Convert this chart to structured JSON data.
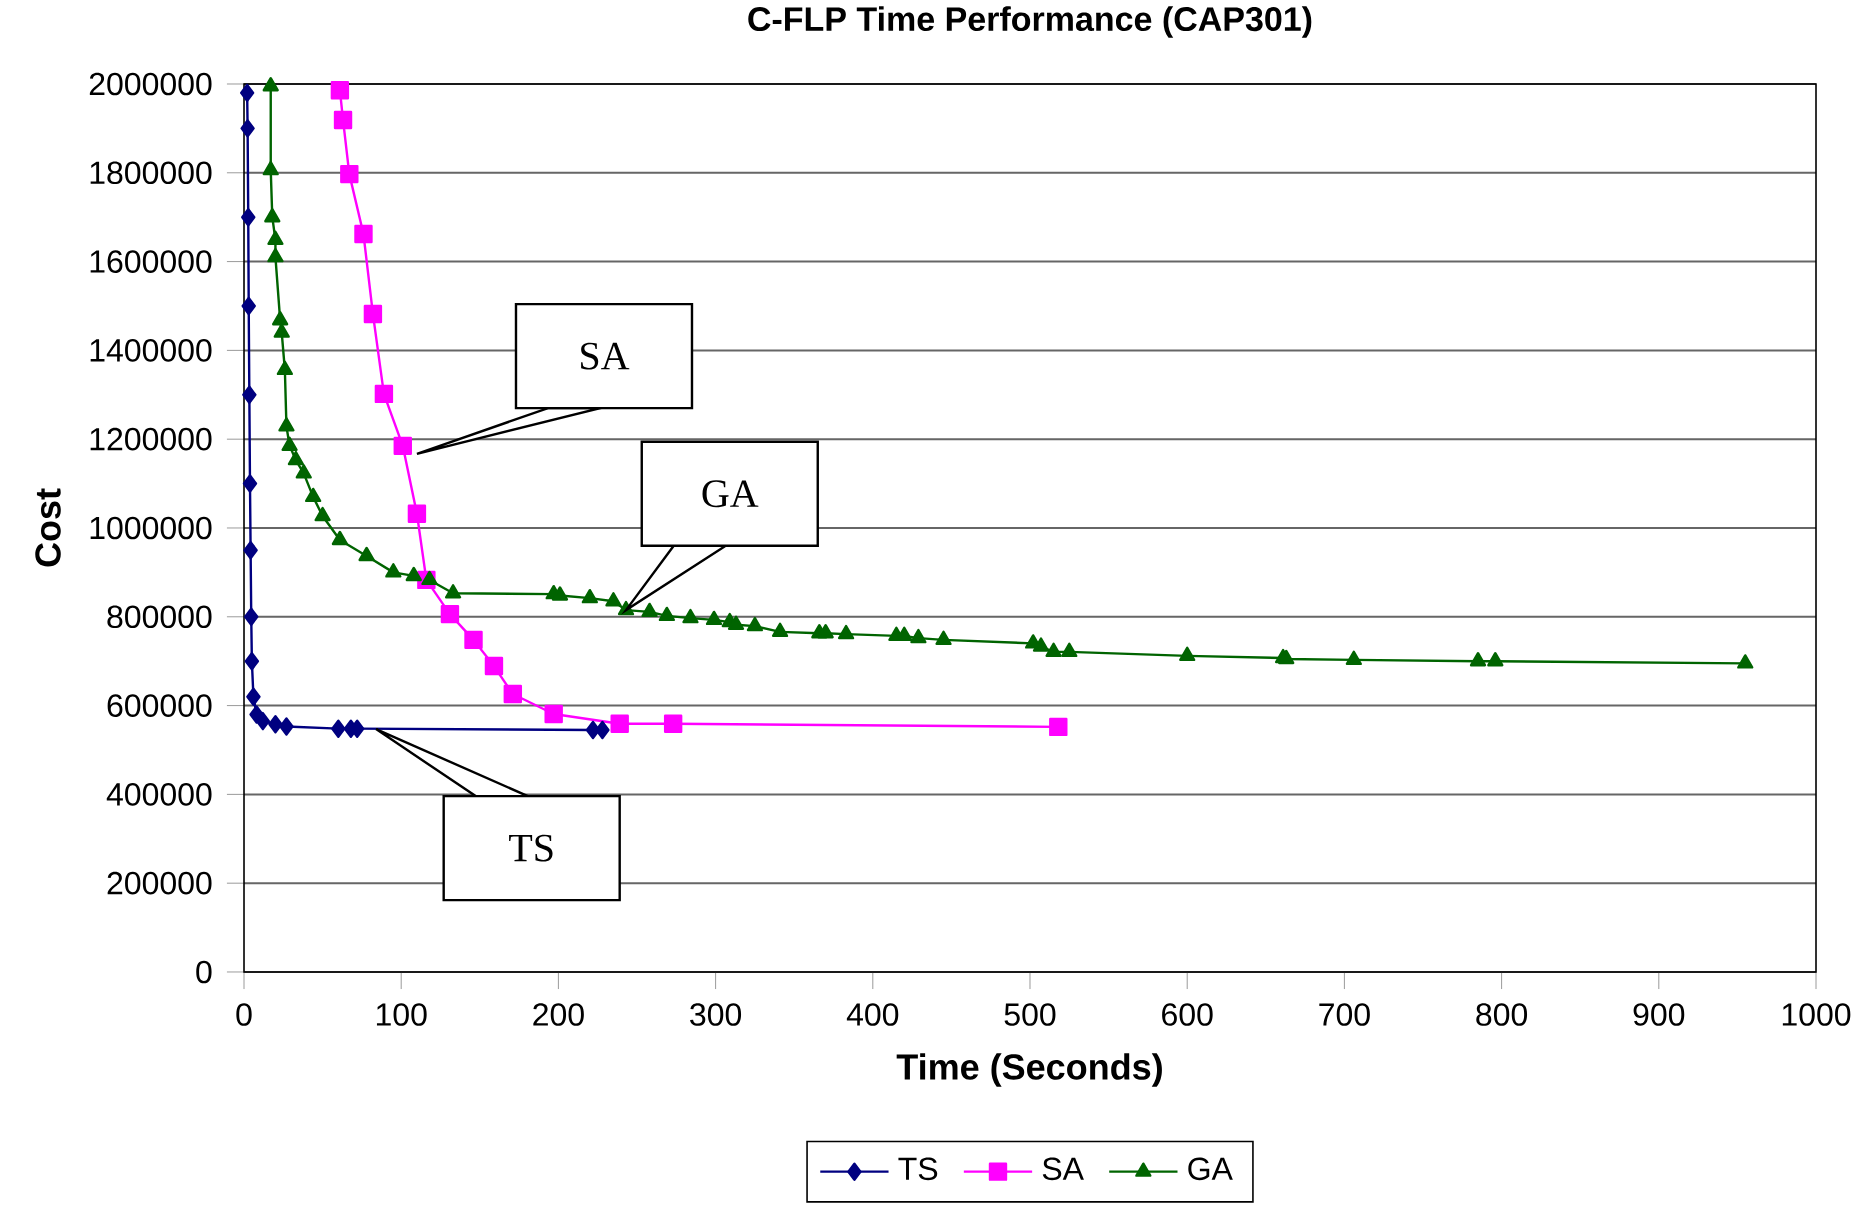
{
  "chart_data": {
    "type": "line",
    "title": "C-FLP Time Performance (CAP301)",
    "xlabel": "Time (Seconds)",
    "ylabel": "Cost",
    "xlim": [
      0,
      1000
    ],
    "ylim": [
      0,
      2000000
    ],
    "xticks": [
      0,
      100,
      200,
      300,
      400,
      500,
      600,
      700,
      800,
      900,
      1000
    ],
    "yticks": [
      0,
      200000,
      400000,
      600000,
      800000,
      1000000,
      1200000,
      1400000,
      1600000,
      1800000,
      2000000
    ],
    "grid": "y",
    "legend": "bottom",
    "line_style": "solid",
    "series": [
      {
        "name": "TS",
        "color": "#000080",
        "marker": "diamond",
        "x": [
          2.0,
          2.3,
          2.7,
          3.0,
          3.4,
          3.8,
          4.2,
          4.6,
          5.0,
          6,
          8,
          12,
          20,
          27,
          60,
          68,
          72,
          222,
          228
        ],
        "values": [
          1980000,
          1900000,
          1700000,
          1500000,
          1300000,
          1100000,
          950000,
          800000,
          700000,
          620000,
          580000,
          565000,
          558000,
          553000,
          548000,
          548000,
          548000,
          545000,
          545000
        ]
      },
      {
        "name": "SA",
        "color": "#ff00ff",
        "marker": "square",
        "x": [
          61,
          63,
          67,
          76,
          82,
          89,
          101,
          110,
          116,
          131,
          146,
          159,
          171,
          197,
          239,
          273,
          518
        ],
        "values": [
          1986000,
          1919000,
          1797000,
          1662000,
          1482000,
          1302000,
          1185000,
          1032000,
          883000,
          806000,
          748000,
          689000,
          626000,
          581000,
          559000,
          559000,
          552000
        ]
      },
      {
        "name": "GA",
        "color": "#006400",
        "marker": "triangle",
        "x": [
          17,
          17,
          18,
          20,
          20,
          23,
          24,
          26,
          27,
          29,
          33,
          38,
          44,
          50,
          61,
          78,
          95,
          108,
          118,
          133,
          197,
          201,
          220,
          235,
          243,
          258,
          269,
          284,
          299,
          309,
          313,
          325,
          341,
          366,
          370,
          383,
          415,
          420,
          429,
          445,
          502,
          507,
          515,
          525,
          600,
          661,
          663,
          706,
          785,
          796,
          955
        ],
        "values": [
          1995000,
          1806000,
          1700000,
          1649000,
          1610000,
          1468000,
          1440000,
          1356000,
          1229000,
          1185000,
          1153000,
          1123000,
          1070000,
          1027000,
          973000,
          937000,
          900000,
          892000,
          883000,
          853000,
          851000,
          848000,
          842000,
          835000,
          815000,
          811000,
          802000,
          797000,
          793000,
          788000,
          782000,
          779000,
          766000,
          763000,
          763000,
          761000,
          757000,
          757000,
          752000,
          748000,
          740000,
          733000,
          721000,
          721000,
          712000,
          707000,
          705000,
          703000,
          700000,
          700000,
          695000
        ]
      }
    ],
    "annotations": [
      {
        "text": "SA",
        "x": 110,
        "y": 1167000
      },
      "GA",
      {
        "text": "TS",
        "x": 84,
        "y": 547000
      }
    ]
  }
}
